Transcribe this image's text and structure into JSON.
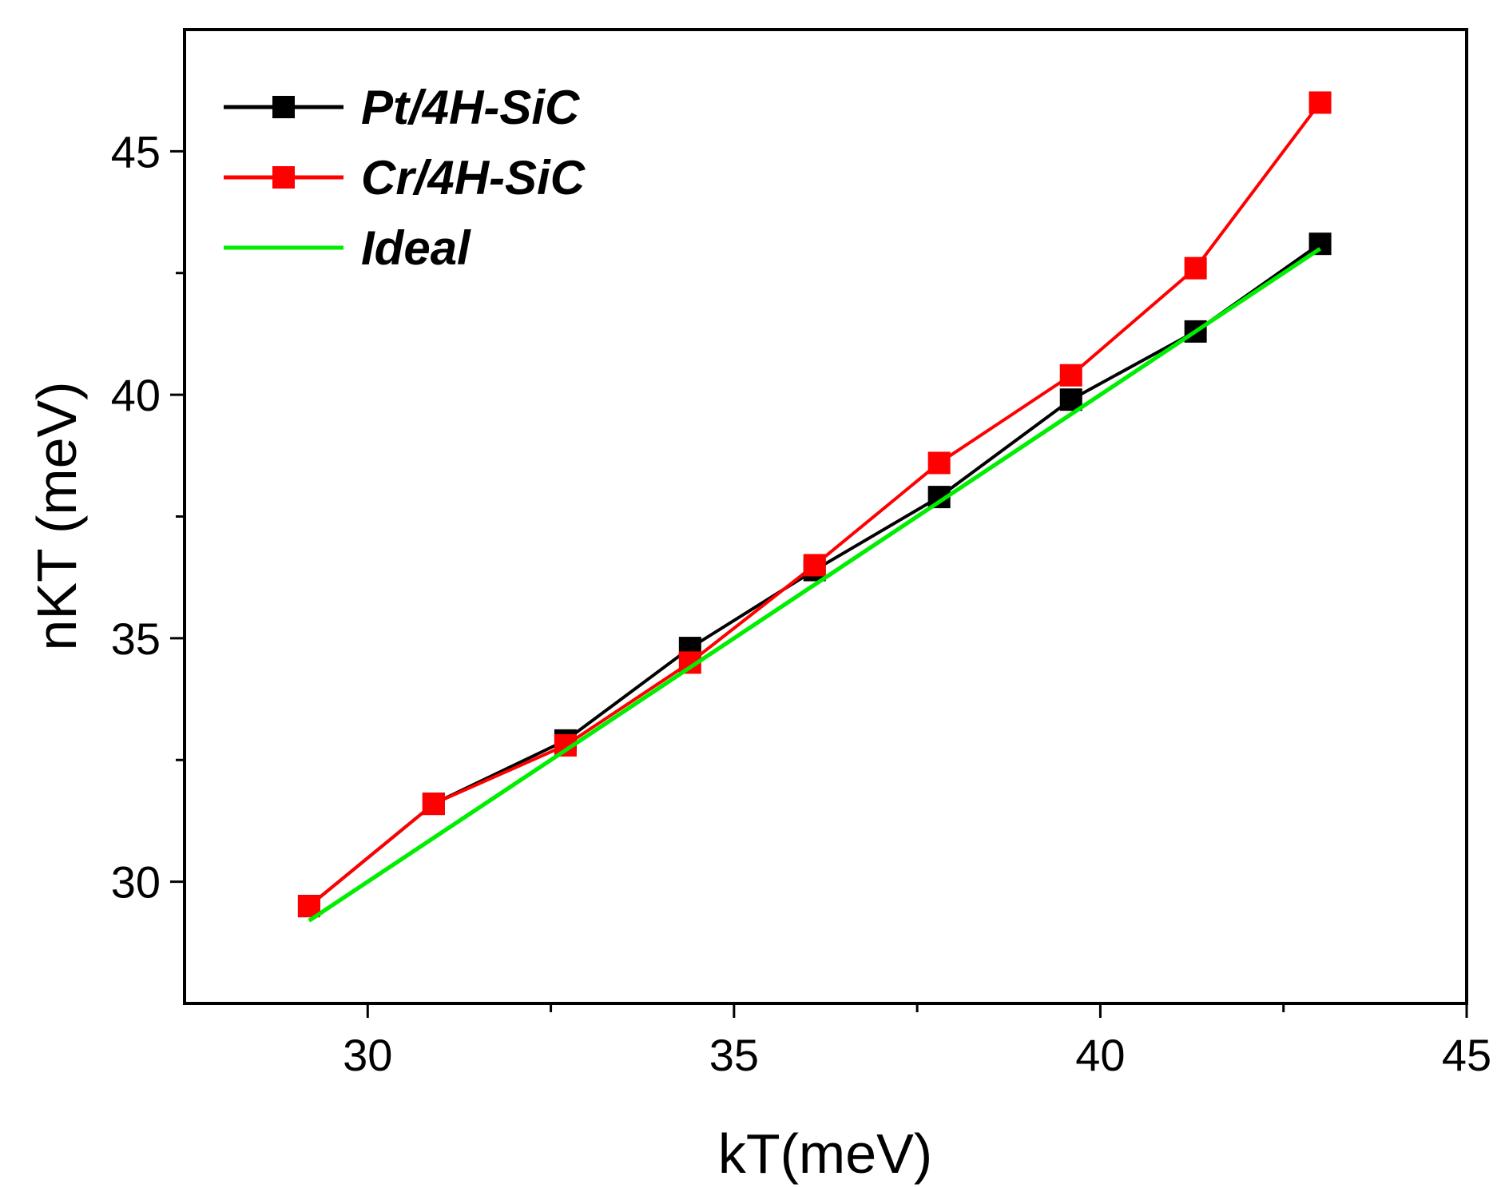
{
  "chart_data": {
    "type": "line",
    "title": "",
    "xlabel": "kT(meV)",
    "ylabel": "nKT (meV)",
    "xlim": [
      27.5,
      45
    ],
    "ylim": [
      27.5,
      47.5
    ],
    "x_ticks": [
      30,
      35,
      40,
      45
    ],
    "y_ticks": [
      30,
      35,
      40,
      45
    ],
    "x_minor_ticks": [
      32.5,
      37.5,
      42.5
    ],
    "y_minor_ticks": [
      32.5,
      37.5,
      42.5
    ],
    "grid": false,
    "legend_position": "top-left",
    "series": [
      {
        "name": "Pt/4H-SiC",
        "color": "#000000",
        "marker": "square",
        "x": [
          29.2,
          30.9,
          32.7,
          34.4,
          36.1,
          37.8,
          39.6,
          41.3,
          43.0
        ],
        "y": [
          29.5,
          31.6,
          32.9,
          34.8,
          36.4,
          37.9,
          39.9,
          41.3,
          43.1
        ]
      },
      {
        "name": "Cr/4H-SiC",
        "color": "#ff0000",
        "marker": "square",
        "x": [
          29.2,
          30.9,
          32.7,
          34.4,
          36.1,
          37.8,
          39.6,
          41.3,
          43.0
        ],
        "y": [
          29.5,
          31.6,
          32.8,
          34.5,
          36.5,
          38.6,
          40.4,
          42.6,
          46.0
        ]
      },
      {
        "name": "Ideal",
        "color": "#00ee00",
        "marker": "none",
        "x": [
          29.2,
          43.0
        ],
        "y": [
          29.2,
          43.0
        ]
      }
    ]
  }
}
